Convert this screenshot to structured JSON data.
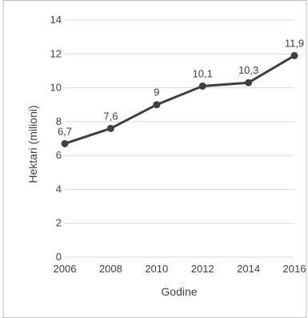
{
  "chart_data": {
    "type": "line",
    "title": "",
    "xlabel": "Godine",
    "ylabel": "Hektari (milioni)",
    "x": [
      2006,
      2008,
      2010,
      2012,
      2014,
      2016
    ],
    "x_tick_labels": [
      "2006",
      "2008",
      "2010",
      "2012",
      "2014",
      "2016"
    ],
    "values": [
      6.7,
      7.6,
      9,
      10.1,
      10.3,
      11.9
    ],
    "data_labels": [
      "6,7",
      "7,6",
      "9",
      "10,1",
      "10,3",
      "11,9"
    ],
    "ylim": [
      0,
      14
    ],
    "y_ticks": [
      0,
      2,
      4,
      6,
      8,
      10,
      12,
      14
    ],
    "y_tick_labels": [
      "0",
      "2",
      "4",
      "6",
      "8",
      "10",
      "12",
      "14"
    ],
    "grid": true,
    "legend": "none",
    "colors": {
      "line": "#404040",
      "marker": "#404040",
      "grid": "#d9d9d9",
      "text": "#404040",
      "frame": "#bfbfbf"
    }
  }
}
